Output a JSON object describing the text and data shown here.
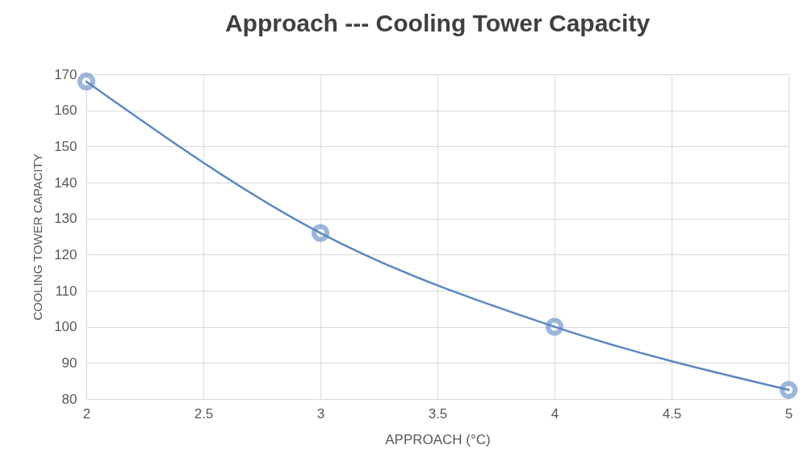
{
  "chart_data": {
    "type": "line",
    "title": "Approach --- Cooling Tower Capacity",
    "xlabel": "APPROACH (°C)",
    "ylabel": "COOLING TOWER CAPACITY",
    "x": [
      2,
      3,
      4,
      5
    ],
    "series": [
      {
        "color": "#5b87c5",
        "values": [
          168,
          126,
          100,
          82.5
        ]
      }
    ],
    "xlim": [
      2,
      5
    ],
    "ylim": [
      80,
      170
    ],
    "xticks": [
      2,
      2.5,
      3,
      3.5,
      4,
      4.5,
      5
    ],
    "yticks": [
      80,
      90,
      100,
      110,
      120,
      130,
      140,
      150,
      160,
      170
    ],
    "grid": true,
    "marker": "circle",
    "line_style": "solid"
  }
}
